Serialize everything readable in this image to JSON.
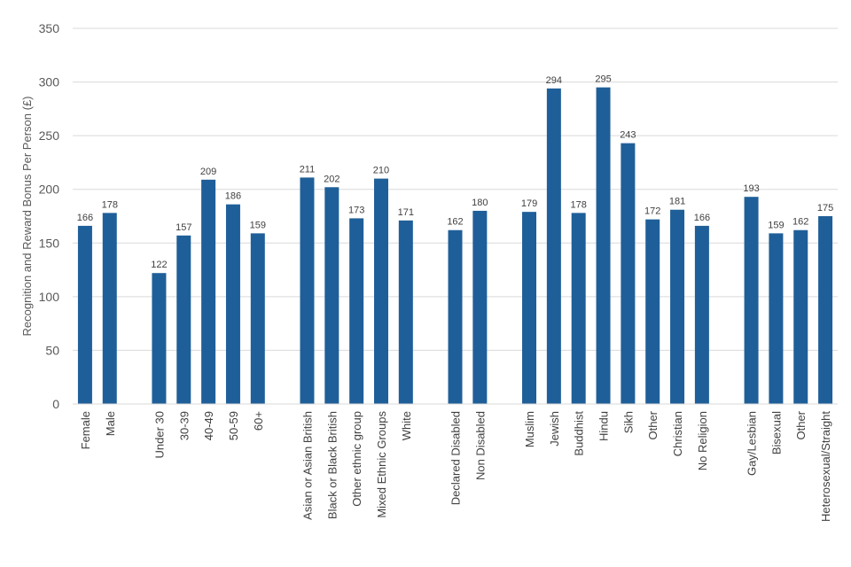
{
  "chart_data": {
    "type": "bar",
    "title": "",
    "xlabel": "",
    "ylabel": "Recognition and Reward Bonus Per Person (£)",
    "ylim": [
      0,
      350
    ],
    "yticks": [
      0,
      50,
      100,
      150,
      200,
      250,
      300,
      350
    ],
    "grid": true,
    "legend": "none",
    "bar_color": "#1F5F99",
    "groups": [
      {
        "categories": [
          "Female",
          "Male"
        ],
        "values": [
          166,
          178
        ]
      },
      {
        "categories": [
          "Under 30",
          "30-39",
          "40-49",
          "50-59",
          "60+"
        ],
        "values": [
          122,
          157,
          209,
          186,
          159
        ]
      },
      {
        "categories": [
          "Asian or Asian British",
          "Black or Black British",
          "Other ethnic group",
          "Mixed Ethnic Groups",
          "White"
        ],
        "values": [
          211,
          202,
          173,
          210,
          171
        ]
      },
      {
        "categories": [
          "Declared Disabled",
          "Non Disabled"
        ],
        "values": [
          162,
          180
        ]
      },
      {
        "categories": [
          "Muslim",
          "Jewish",
          "Buddhist",
          "Hindu",
          "Sikh",
          "Other",
          "Christian",
          "No Religion"
        ],
        "values": [
          179,
          294,
          178,
          295,
          243,
          172,
          181,
          166
        ]
      },
      {
        "categories": [
          "Gay/Lesbian",
          "Bisexual",
          "Other",
          "Heterosexual/Straight"
        ],
        "values": [
          193,
          159,
          162,
          175
        ]
      }
    ]
  }
}
